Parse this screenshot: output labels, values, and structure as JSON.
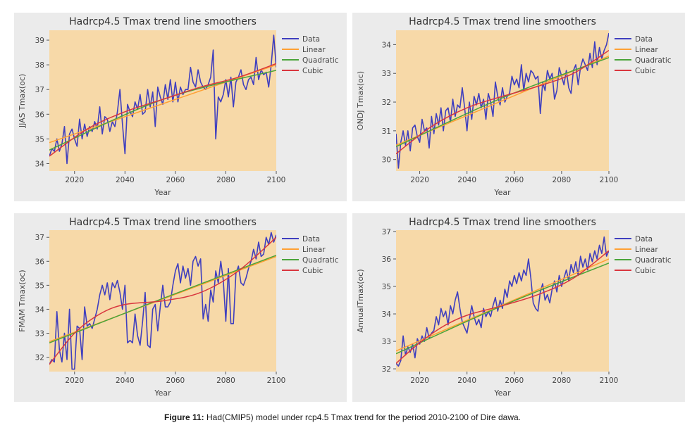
{
  "caption": {
    "label": "Figure 11:",
    "text": "Had(CMIP5) model under rcp4.5 Tmax  trend for the period 2010-2100 of Dire dawa."
  },
  "colors": {
    "panel_bg": "#ebebeb",
    "plot_bg": "#f7d9a8",
    "data": "#3f3fbf",
    "linear": "#ffa033",
    "quadratic": "#4aa43a",
    "cubic": "#d9363e"
  },
  "chart_data": [
    {
      "type": "line",
      "title": "Hadrcp4.5 Tmax trend line smoothers",
      "xlabel": "Year",
      "ylabel": "JJAS Tmax(oc)",
      "xlim": [
        2010,
        2100
      ],
      "ylim": [
        33.7,
        39.4
      ],
      "xticks": [
        2020,
        2040,
        2060,
        2080,
        2100
      ],
      "yticks": [
        34,
        35,
        36,
        37,
        38,
        39
      ],
      "legend": "top-right",
      "grid": false,
      "series": [
        {
          "name": "Data",
          "x": [
            2010,
            2011,
            2012,
            2013,
            2014,
            2015,
            2016,
            2017,
            2018,
            2019,
            2020,
            2021,
            2022,
            2023,
            2024,
            2025,
            2026,
            2027,
            2028,
            2029,
            2030,
            2031,
            2032,
            2033,
            2034,
            2035,
            2036,
            2037,
            2038,
            2039,
            2040,
            2041,
            2042,
            2043,
            2044,
            2045,
            2046,
            2047,
            2048,
            2049,
            2050,
            2051,
            2052,
            2053,
            2054,
            2055,
            2056,
            2057,
            2058,
            2059,
            2060,
            2061,
            2062,
            2063,
            2064,
            2065,
            2066,
            2067,
            2068,
            2069,
            2070,
            2071,
            2072,
            2073,
            2074,
            2075,
            2076,
            2077,
            2078,
            2079,
            2080,
            2081,
            2082,
            2083,
            2084,
            2085,
            2086,
            2087,
            2088,
            2089,
            2090,
            2091,
            2092,
            2093,
            2094,
            2095,
            2096,
            2097,
            2098,
            2099,
            2100
          ],
          "y": [
            34.3,
            34.6,
            34.5,
            35.0,
            34.5,
            34.8,
            35.5,
            34.0,
            35.2,
            35.4,
            35.0,
            34.7,
            35.8,
            35.0,
            35.6,
            35.1,
            35.5,
            35.3,
            35.7,
            35.4,
            36.3,
            35.2,
            35.9,
            35.8,
            35.3,
            35.7,
            35.5,
            36.1,
            37.0,
            35.6,
            34.4,
            36.4,
            36.1,
            35.9,
            36.5,
            36.2,
            36.8,
            36.0,
            36.1,
            37.0,
            36.3,
            36.9,
            35.5,
            37.1,
            36.7,
            36.4,
            37.2,
            36.6,
            37.4,
            36.5,
            37.3,
            36.5,
            37.1,
            36.8,
            37.0,
            37.0,
            37.9,
            37.3,
            37.1,
            37.8,
            37.3,
            37.1,
            37.0,
            37.2,
            37.5,
            38.6,
            35.0,
            36.7,
            36.5,
            36.8,
            37.4,
            36.7,
            37.5,
            36.3,
            37.3,
            37.5,
            37.8,
            37.2,
            37.0,
            37.4,
            37.5,
            37.2,
            38.3,
            37.4,
            37.8,
            37.6,
            37.7,
            37.1,
            38.0,
            39.2,
            37.9
          ]
        },
        {
          "name": "Linear",
          "x": [
            2010,
            2100
          ],
          "y": [
            34.85,
            38.0
          ]
        },
        {
          "name": "Quadratic",
          "x": [
            2010,
            2055,
            2100
          ],
          "y": [
            34.55,
            36.6,
            37.78
          ]
        },
        {
          "name": "Cubic",
          "x": [
            2010,
            2025,
            2040,
            2055,
            2070,
            2085,
            2100
          ],
          "y": [
            34.3,
            35.4,
            36.1,
            36.6,
            37.1,
            37.5,
            38.05
          ]
        }
      ]
    },
    {
      "type": "line",
      "title": "Hadrcp4.5 Tmax trend line smoothers",
      "xlabel": "Year",
      "ylabel": "ONDJ Tmax(oc)",
      "xlim": [
        2010,
        2100
      ],
      "ylim": [
        29.6,
        34.5
      ],
      "xticks": [
        2020,
        2040,
        2060,
        2080,
        2100
      ],
      "yticks": [
        30,
        31,
        32,
        33,
        34
      ],
      "legend": "top-right",
      "grid": false,
      "series": [
        {
          "name": "Data",
          "x": [
            2010,
            2011,
            2012,
            2013,
            2014,
            2015,
            2016,
            2017,
            2018,
            2019,
            2020,
            2021,
            2022,
            2023,
            2024,
            2025,
            2026,
            2027,
            2028,
            2029,
            2030,
            2031,
            2032,
            2033,
            2034,
            2035,
            2036,
            2037,
            2038,
            2039,
            2040,
            2041,
            2042,
            2043,
            2044,
            2045,
            2046,
            2047,
            2048,
            2049,
            2050,
            2051,
            2052,
            2053,
            2054,
            2055,
            2056,
            2057,
            2058,
            2059,
            2060,
            2061,
            2062,
            2063,
            2064,
            2065,
            2066,
            2067,
            2068,
            2069,
            2070,
            2071,
            2072,
            2073,
            2074,
            2075,
            2076,
            2077,
            2078,
            2079,
            2080,
            2081,
            2082,
            2083,
            2084,
            2085,
            2086,
            2087,
            2088,
            2089,
            2090,
            2091,
            2092,
            2093,
            2094,
            2095,
            2096,
            2097,
            2098,
            2099,
            2100
          ],
          "y": [
            30.9,
            29.7,
            30.6,
            31.0,
            30.5,
            31.0,
            30.3,
            31.1,
            31.2,
            30.8,
            30.6,
            31.4,
            31.0,
            31.1,
            30.4,
            31.5,
            30.9,
            31.6,
            31.2,
            31.8,
            31.0,
            31.7,
            31.8,
            31.3,
            32.1,
            31.5,
            31.9,
            31.8,
            32.5,
            31.8,
            31.0,
            32.0,
            31.4,
            32.2,
            31.9,
            32.3,
            31.8,
            32.1,
            31.4,
            32.3,
            32.0,
            31.5,
            32.7,
            32.2,
            31.9,
            32.5,
            32.0,
            32.2,
            32.3,
            32.9,
            32.6,
            32.8,
            32.5,
            33.3,
            32.4,
            33.0,
            32.7,
            33.1,
            33.0,
            32.8,
            32.9,
            31.6,
            32.7,
            32.4,
            33.1,
            32.8,
            33.0,
            32.1,
            32.4,
            33.2,
            32.9,
            32.6,
            33.1,
            32.5,
            32.3,
            33.1,
            33.3,
            32.6,
            33.2,
            33.5,
            33.3,
            33.1,
            33.7,
            33.2,
            34.1,
            33.3,
            33.9,
            33.5,
            33.8,
            34.0,
            34.4
          ]
        },
        {
          "name": "Linear",
          "x": [
            2010,
            2100
          ],
          "y": [
            30.5,
            33.6
          ]
        },
        {
          "name": "Quadratic",
          "x": [
            2010,
            2055,
            2100
          ],
          "y": [
            30.45,
            32.15,
            33.55
          ]
        },
        {
          "name": "Cubic",
          "x": [
            2010,
            2025,
            2040,
            2055,
            2070,
            2085,
            2100
          ],
          "y": [
            30.2,
            31.15,
            31.8,
            32.2,
            32.55,
            33.0,
            33.8
          ]
        }
      ]
    },
    {
      "type": "line",
      "title": "Hadrcp4.5 Tmax trend line smoothers",
      "xlabel": "Year",
      "ylabel": "FMAM Tmax(oc)",
      "xlim": [
        2010,
        2100
      ],
      "ylim": [
        31.4,
        37.3
      ],
      "xticks": [
        2020,
        2040,
        2060,
        2080,
        2100
      ],
      "yticks": [
        32,
        33,
        34,
        35,
        36,
        37
      ],
      "legend": "top-right",
      "grid": false,
      "series": [
        {
          "name": "Data",
          "x": [
            2010,
            2011,
            2012,
            2013,
            2014,
            2015,
            2016,
            2017,
            2018,
            2019,
            2020,
            2021,
            2022,
            2023,
            2024,
            2025,
            2026,
            2027,
            2028,
            2029,
            2030,
            2031,
            2032,
            2033,
            2034,
            2035,
            2036,
            2037,
            2038,
            2039,
            2040,
            2041,
            2042,
            2043,
            2044,
            2045,
            2046,
            2047,
            2048,
            2049,
            2050,
            2051,
            2052,
            2053,
            2054,
            2055,
            2056,
            2057,
            2058,
            2059,
            2060,
            2061,
            2062,
            2063,
            2064,
            2065,
            2066,
            2067,
            2068,
            2069,
            2070,
            2071,
            2072,
            2073,
            2074,
            2075,
            2076,
            2077,
            2078,
            2079,
            2080,
            2081,
            2082,
            2083,
            2084,
            2085,
            2086,
            2087,
            2088,
            2089,
            2090,
            2091,
            2092,
            2093,
            2094,
            2095,
            2096,
            2097,
            2098,
            2099,
            2100
          ],
          "y": [
            31.7,
            31.9,
            31.8,
            33.9,
            32.3,
            31.8,
            33.0,
            31.9,
            34.0,
            31.5,
            31.5,
            33.3,
            33.2,
            31.9,
            34.1,
            33.3,
            33.4,
            33.2,
            33.6,
            34.0,
            34.6,
            35.0,
            34.6,
            35.1,
            34.4,
            35.1,
            34.9,
            35.2,
            34.7,
            34.0,
            35.0,
            32.6,
            32.7,
            32.6,
            33.8,
            32.9,
            32.5,
            33.5,
            34.7,
            32.5,
            32.4,
            34.0,
            34.2,
            33.1,
            34.1,
            35.0,
            34.1,
            34.1,
            34.3,
            35.0,
            35.6,
            35.9,
            35.1,
            35.8,
            35.3,
            35.7,
            35.0,
            36.0,
            36.2,
            35.8,
            36.1,
            33.6,
            34.2,
            33.5,
            34.8,
            34.3,
            35.6,
            35.1,
            36.0,
            35.2,
            33.5,
            35.7,
            33.4,
            33.4,
            35.5,
            35.8,
            35.1,
            35.0,
            35.3,
            35.7,
            36.0,
            36.5,
            36.1,
            36.8,
            36.2,
            36.3,
            37.0,
            36.7,
            37.2,
            36.8,
            37.1
          ]
        },
        {
          "name": "Linear",
          "x": [
            2010,
            2100
          ],
          "y": [
            32.65,
            36.2
          ]
        },
        {
          "name": "Quadratic",
          "x": [
            2010,
            2055,
            2100
          ],
          "y": [
            32.6,
            34.45,
            36.25
          ]
        },
        {
          "name": "Cubic",
          "x": [
            2010,
            2020,
            2030,
            2040,
            2055,
            2070,
            2085,
            2100
          ],
          "y": [
            31.7,
            33.0,
            33.8,
            34.2,
            34.35,
            34.7,
            35.6,
            37.0
          ]
        }
      ]
    },
    {
      "type": "line",
      "title": "Hadrcp4.5 Tmax trend line smoothers",
      "xlabel": "Year",
      "ylabel": "AnnualTmax(oc)",
      "xlim": [
        2010,
        2100
      ],
      "ylim": [
        31.9,
        37.05
      ],
      "xticks": [
        2020,
        2040,
        2060,
        2080,
        2100
      ],
      "yticks": [
        32,
        33,
        34,
        35,
        36,
        37
      ],
      "legend": "top-right",
      "grid": false,
      "series": [
        {
          "name": "Data",
          "x": [
            2010,
            2011,
            2012,
            2013,
            2014,
            2015,
            2016,
            2017,
            2018,
            2019,
            2020,
            2021,
            2022,
            2023,
            2024,
            2025,
            2026,
            2027,
            2028,
            2029,
            2030,
            2031,
            2032,
            2033,
            2034,
            2035,
            2036,
            2037,
            2038,
            2039,
            2040,
            2041,
            2042,
            2043,
            2044,
            2045,
            2046,
            2047,
            2048,
            2049,
            2050,
            2051,
            2052,
            2053,
            2054,
            2055,
            2056,
            2057,
            2058,
            2059,
            2060,
            2061,
            2062,
            2063,
            2064,
            2065,
            2066,
            2067,
            2068,
            2069,
            2070,
            2071,
            2072,
            2073,
            2074,
            2075,
            2076,
            2077,
            2078,
            2079,
            2080,
            2081,
            2082,
            2083,
            2084,
            2085,
            2086,
            2087,
            2088,
            2089,
            2090,
            2091,
            2092,
            2093,
            2094,
            2095,
            2096,
            2097,
            2098,
            2099,
            2100
          ],
          "y": [
            32.2,
            32.1,
            32.3,
            33.2,
            32.5,
            32.8,
            32.6,
            32.9,
            32.4,
            33.1,
            32.9,
            33.2,
            33.0,
            33.5,
            33.1,
            33.3,
            33.4,
            33.9,
            33.6,
            34.2,
            33.9,
            34.1,
            33.6,
            34.3,
            34.0,
            34.5,
            34.8,
            34.2,
            33.7,
            33.5,
            33.3,
            33.8,
            34.3,
            33.9,
            33.6,
            33.8,
            33.5,
            34.2,
            33.9,
            34.1,
            33.9,
            34.3,
            34.6,
            34.1,
            34.5,
            34.2,
            34.9,
            34.6,
            35.2,
            35.0,
            35.4,
            35.1,
            35.5,
            35.2,
            35.6,
            35.4,
            36.0,
            35.3,
            34.4,
            34.2,
            34.1,
            34.8,
            35.1,
            34.5,
            34.7,
            34.4,
            34.9,
            35.2,
            34.8,
            35.4,
            35.0,
            35.3,
            35.6,
            35.2,
            35.8,
            35.5,
            35.9,
            35.4,
            36.1,
            35.7,
            36.0,
            35.6,
            36.2,
            35.9,
            36.3,
            36.0,
            36.5,
            36.2,
            36.8,
            36.1,
            36.3
          ]
        },
        {
          "name": "Linear",
          "x": [
            2010,
            2100
          ],
          "y": [
            32.65,
            36.0
          ]
        },
        {
          "name": "Quadratic",
          "x": [
            2010,
            2055,
            2100
          ],
          "y": [
            32.55,
            34.3,
            35.85
          ]
        },
        {
          "name": "Cubic",
          "x": [
            2010,
            2020,
            2030,
            2040,
            2055,
            2070,
            2085,
            2100
          ],
          "y": [
            32.2,
            32.95,
            33.55,
            33.95,
            34.3,
            34.7,
            35.3,
            36.3
          ]
        }
      ]
    }
  ]
}
